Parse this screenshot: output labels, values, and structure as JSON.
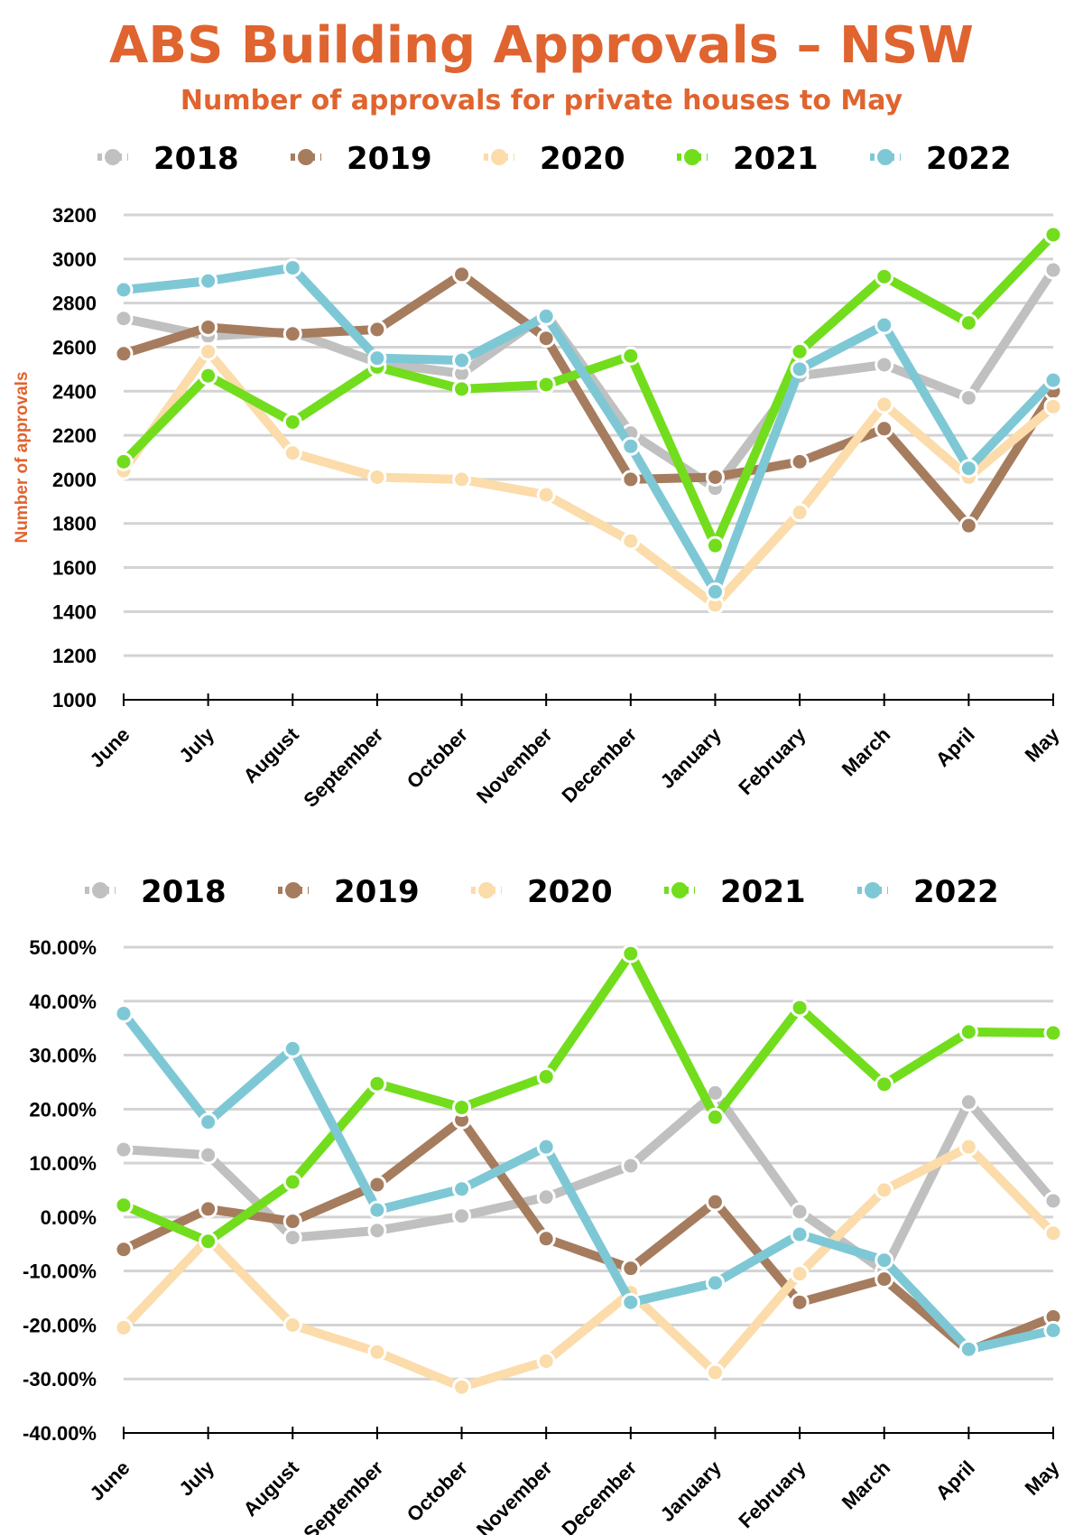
{
  "title": "ABS Building Approvals – NSW",
  "subtitle": "Number of approvals for private houses to May",
  "colors": {
    "2018": "#c0c0c0",
    "2019": "#a67c5e",
    "2020": "#fbdcaa",
    "2021": "#72dd1c",
    "2022": "#7ec8d6",
    "title": "#e0642f",
    "grid": "#d3d3d3"
  },
  "chart_data": [
    {
      "type": "line",
      "ylabel": "Number of approvals",
      "ylim": [
        1000,
        3200
      ],
      "yticks": [
        "3200",
        "3000",
        "2800",
        "2600",
        "2400",
        "2200",
        "2000",
        "1800",
        "1600",
        "1400",
        "1200",
        "1000"
      ],
      "grid": true,
      "legend": "top",
      "categories": [
        "June",
        "July",
        "August",
        "September",
        "October",
        "November",
        "December",
        "January",
        "February",
        "March",
        "April",
        "May"
      ],
      "series": [
        {
          "name": "2018",
          "values": [
            2730,
            2650,
            2670,
            2530,
            2480,
            2750,
            2210,
            1960,
            2470,
            2520,
            2370,
            2950
          ]
        },
        {
          "name": "2019",
          "values": [
            2570,
            2690,
            2660,
            2680,
            2930,
            2640,
            2000,
            2010,
            2080,
            2230,
            1790,
            2400
          ]
        },
        {
          "name": "2020",
          "values": [
            2040,
            2580,
            2120,
            2010,
            2000,
            1930,
            1720,
            1430,
            1850,
            2340,
            2010,
            2330
          ]
        },
        {
          "name": "2021",
          "values": [
            2080,
            2470,
            2260,
            2510,
            2410,
            2430,
            2560,
            1700,
            2580,
            2920,
            2710,
            3110
          ]
        },
        {
          "name": "2022",
          "values": [
            2860,
            2900,
            2960,
            2550,
            2540,
            2740,
            2150,
            1490,
            2500,
            2700,
            2050,
            2450
          ]
        }
      ]
    },
    {
      "type": "line",
      "ylabel": "",
      "ylim": [
        -40,
        50
      ],
      "yticks": [
        "50.00%",
        "40.00%",
        "30.00%",
        "20.00%",
        "10.00%",
        "0.00%",
        "-10.00%",
        "-20.00%",
        "-30.00%",
        "-40.00%"
      ],
      "grid": true,
      "legend": "top",
      "categories": [
        "June",
        "July",
        "August",
        "September",
        "October",
        "November",
        "December",
        "January",
        "February",
        "March",
        "April",
        "May"
      ],
      "series": [
        {
          "name": "2018",
          "values": [
            12.5,
            11.5,
            -3.8,
            -2.5,
            0.2,
            3.7,
            9.5,
            23,
            1,
            -10,
            21.3,
            3
          ]
        },
        {
          "name": "2019",
          "values": [
            -6,
            1.5,
            -0.8,
            6,
            18,
            -4,
            -9.5,
            2.8,
            -15.8,
            -11.5,
            -24.8,
            -18.5
          ]
        },
        {
          "name": "2020",
          "values": [
            -20.5,
            -4,
            -20,
            -25,
            -31.5,
            -26.7,
            -14,
            -28.8,
            -10.5,
            5,
            13,
            -3
          ]
        },
        {
          "name": "2021",
          "values": [
            2.2,
            -4.5,
            6.5,
            24.7,
            20.3,
            26,
            48.8,
            18.5,
            38.8,
            24.6,
            34.3,
            34.1
          ]
        },
        {
          "name": "2022",
          "values": [
            37.7,
            17.6,
            31.2,
            1.3,
            5.2,
            13,
            -15.8,
            -12.2,
            -3.2,
            -8,
            -24.5,
            -21
          ]
        }
      ]
    }
  ]
}
